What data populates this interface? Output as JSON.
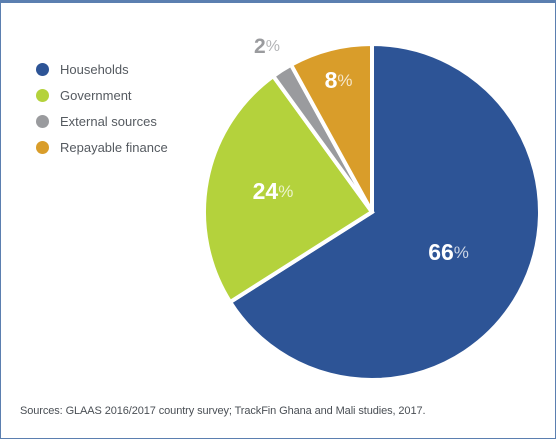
{
  "chart_data": {
    "type": "pie",
    "categories": [
      "Households",
      "Government",
      "External sources",
      "Repayable finance"
    ],
    "values": [
      66,
      24,
      2,
      8
    ],
    "labels": [
      "66",
      "24",
      "2",
      "8"
    ],
    "percent_sign": "%",
    "colors": [
      "#2d5496",
      "#b4d23c",
      "#9a9b9e",
      "#d99d2a"
    ],
    "label_colors": [
      "#ffffff",
      "#ffffff",
      "#9a9b9e",
      "#ffffff"
    ],
    "legend_position": "top-left",
    "start_angle_deg": 0,
    "direction": "clockwise"
  },
  "source_text": "Sources: GLAAS 2016/2017 country survey; TrackFin Ghana and Mali studies, 2017."
}
